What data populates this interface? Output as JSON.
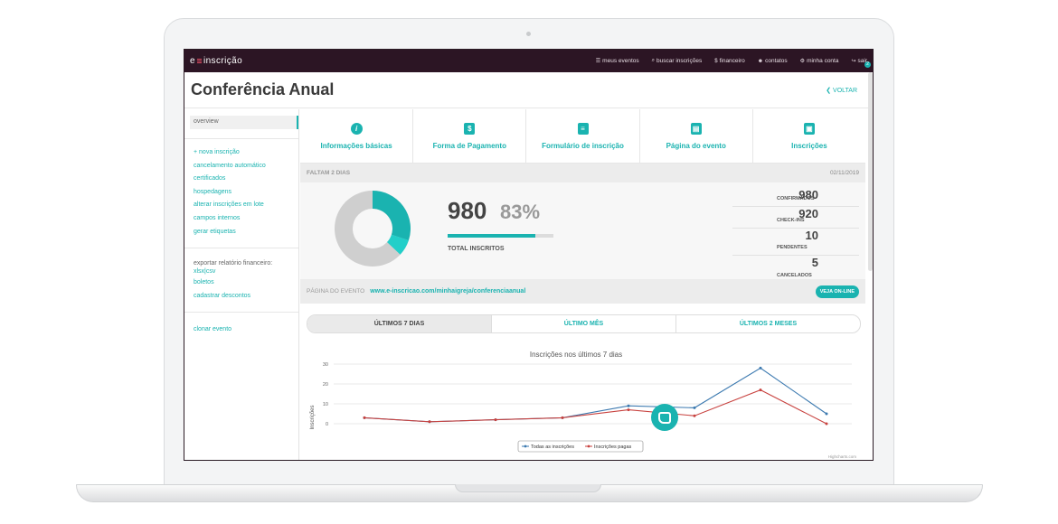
{
  "nav": {
    "logo_left": "e",
    "logo_right": "inscrição",
    "links": [
      "meus eventos",
      "buscar inscrições",
      "financeiro",
      "contatos",
      "minha conta",
      "sair"
    ],
    "notif_count": "2"
  },
  "header": {
    "title": "Conferência Anual",
    "back": "VOLTAR"
  },
  "sidebar": {
    "overview": "overview",
    "group1": [
      "+ nova inscrição",
      "cancelamento automático",
      "certificados",
      "hospedagens",
      "alterar inscrições em lote",
      "campos internos",
      "gerar etiquetas"
    ],
    "export_text": "exportar relatório financeiro:",
    "export_link": "xlsx|csv",
    "group2": [
      "boletos",
      "cadastrar descontos"
    ],
    "clone": "clonar evento"
  },
  "cards": [
    "Informações básicas",
    "Forma de Pagamento",
    "Formulário de inscrição",
    "Página do evento",
    "Inscrições"
  ],
  "countdown": {
    "label": "FALTAM 2 DIAS",
    "date": "02/11/2019"
  },
  "stats": {
    "total": "980",
    "percent": "83%",
    "total_label": "TOTAL INSCRITOS",
    "progress": 0.83,
    "items": [
      {
        "num": "980",
        "label": "CONFIRMADOS"
      },
      {
        "num": "920",
        "label": "CHECK-INS"
      },
      {
        "num": "10",
        "label": "PENDENTES"
      },
      {
        "num": "5",
        "label": "CANCELADOS"
      }
    ]
  },
  "page_band": {
    "label": "PÁGINA DO EVENTO",
    "url": "www.e-inscricao.com/minhaigreja/conferenciaanual",
    "button": "VEJA ON-LINE"
  },
  "tabs": [
    "ÚLTIMOS 7 DIAS",
    "ÚLTIMO MÊS",
    "ÚLTIMOS 2 MESES"
  ],
  "colors": {
    "accent": "#1ab3b0",
    "nav": "#2c1524",
    "series_all": "#3d7ab0",
    "series_paid": "#c8423f"
  },
  "chart_data": {
    "type": "line",
    "title": "Inscrições nos últimos 7 dias",
    "ylabel": "Inscrições",
    "ylim": [
      0,
      30
    ],
    "yticks": [
      0,
      10,
      20,
      30
    ],
    "credit": "Highcharts.com",
    "series": [
      {
        "name": "Todas as inscrições",
        "values": [
          3,
          1,
          2,
          3,
          9,
          8,
          28,
          5
        ]
      },
      {
        "name": "Inscrições pagas",
        "values": [
          3,
          1,
          2,
          3,
          7,
          4,
          17,
          0
        ]
      }
    ]
  }
}
